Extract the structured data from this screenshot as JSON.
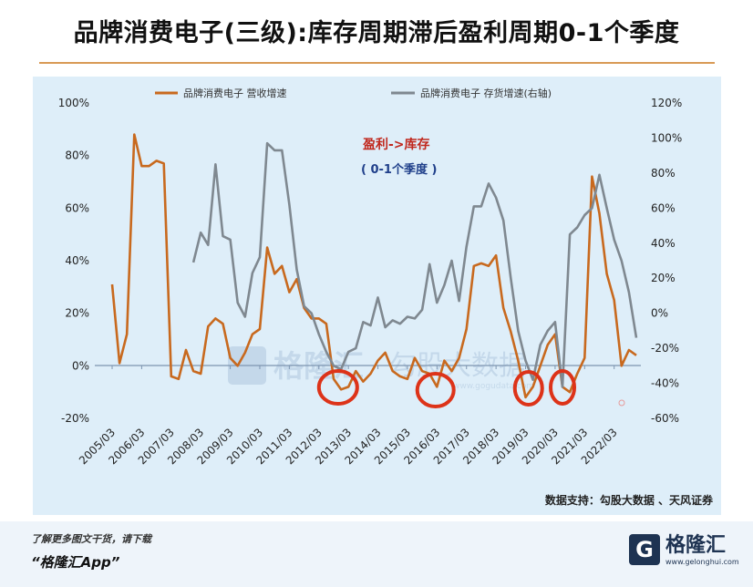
{
  "title": "品牌消费电子(三级):库存周期滞后盈利周期0-1个季度",
  "source_note": "数据支持：勾股大数据 、天风证券",
  "download_note": "了解更多图文干货，请下载",
  "app_name": "“格隆汇App”",
  "logo": {
    "mark": "G",
    "text": "格隆汇",
    "url": "www.gelonghui.com"
  },
  "watermark": {
    "left_text": "格隆汇",
    "right_text": "勾股大数据",
    "url": "www.gogudata.com"
  },
  "annotation": {
    "line1": "盈利->库存",
    "line2": "( 0-1个季度 )"
  },
  "colors": {
    "revenue": "#c8691e",
    "inventory": "#7f8890",
    "annotation_red": "#c0281e",
    "annotation_blue": "#1f3f8a",
    "circle": "#dd3319"
  },
  "chart_data": {
    "type": "line",
    "title": "品牌消费电子(三级):库存周期滞后盈利周期0-1个季度",
    "x_tick_labels": [
      "2005/03",
      "2006/03",
      "2007/03",
      "2008/03",
      "2009/03",
      "2010/03",
      "2011/03",
      "2012/03",
      "2013/03",
      "2014/03",
      "2015/03",
      "2016/03",
      "2017/03",
      "2018/03",
      "2019/03",
      "2020/03",
      "2021/03",
      "2022/03"
    ],
    "left_axis": {
      "ticks": [
        "100%",
        "80%",
        "60%",
        "40%",
        "20%",
        "0%",
        "-20%"
      ],
      "ylim": [
        -20,
        100
      ]
    },
    "right_axis": {
      "ticks": [
        "120%",
        "100%",
        "80%",
        "60%",
        "40%",
        "20%",
        "0%",
        "-20%",
        "-40%",
        "-60%"
      ],
      "ylim": [
        -60,
        120
      ]
    },
    "legend_position": "top",
    "grid": false,
    "series": [
      {
        "name": "品牌消费电子 营收增速",
        "axis": "left",
        "points": [
          [
            2005.25,
            31
          ],
          [
            2005.5,
            1
          ],
          [
            2005.75,
            12
          ],
          [
            2006.0,
            88
          ],
          [
            2006.25,
            76
          ],
          [
            2006.5,
            76
          ],
          [
            2006.75,
            78
          ],
          [
            2007.0,
            77
          ],
          [
            2007.25,
            -4
          ],
          [
            2007.5,
            -5
          ],
          [
            2007.75,
            6
          ],
          [
            2008.0,
            -2
          ],
          [
            2008.25,
            -3
          ],
          [
            2008.5,
            15
          ],
          [
            2008.75,
            18
          ],
          [
            2009.0,
            16
          ],
          [
            2009.25,
            3
          ],
          [
            2009.5,
            0
          ],
          [
            2009.75,
            5
          ],
          [
            2010.0,
            12
          ],
          [
            2010.25,
            14
          ],
          [
            2010.5,
            45
          ],
          [
            2010.75,
            35
          ],
          [
            2011.0,
            38
          ],
          [
            2011.25,
            28
          ],
          [
            2011.5,
            33
          ],
          [
            2011.75,
            22
          ],
          [
            2012.0,
            18
          ],
          [
            2012.25,
            18
          ],
          [
            2012.5,
            16
          ],
          [
            2012.75,
            -5
          ],
          [
            2013.0,
            -9
          ],
          [
            2013.25,
            -8
          ],
          [
            2013.5,
            -2
          ],
          [
            2013.75,
            -6
          ],
          [
            2014.0,
            -3
          ],
          [
            2014.25,
            2
          ],
          [
            2014.5,
            5
          ],
          [
            2014.75,
            -2
          ],
          [
            2015.0,
            -4
          ],
          [
            2015.25,
            -5
          ],
          [
            2015.5,
            3
          ],
          [
            2015.75,
            -2
          ],
          [
            2016.0,
            -3
          ],
          [
            2016.25,
            -8
          ],
          [
            2016.5,
            2
          ],
          [
            2016.75,
            -2
          ],
          [
            2017.0,
            3
          ],
          [
            2017.25,
            14
          ],
          [
            2017.5,
            38
          ],
          [
            2017.75,
            39
          ],
          [
            2018.0,
            38
          ],
          [
            2018.25,
            42
          ],
          [
            2018.5,
            22
          ],
          [
            2018.75,
            13
          ],
          [
            2019.0,
            2
          ],
          [
            2019.25,
            -12
          ],
          [
            2019.5,
            -8
          ],
          [
            2019.75,
            0
          ],
          [
            2020.0,
            8
          ],
          [
            2020.25,
            12
          ],
          [
            2020.5,
            -8
          ],
          [
            2020.75,
            -10
          ],
          [
            2021.0,
            -3
          ],
          [
            2021.25,
            3
          ],
          [
            2021.5,
            72
          ],
          [
            2021.75,
            58
          ],
          [
            2022.0,
            35
          ],
          [
            2022.25,
            25
          ],
          [
            2022.5,
            0
          ],
          [
            2022.75,
            6
          ],
          [
            2023.0,
            4
          ]
        ]
      },
      {
        "name": "品牌消费电子 存货增速(右轴)",
        "axis": "right",
        "points": [
          [
            2008.0,
            29
          ],
          [
            2008.25,
            46
          ],
          [
            2008.5,
            39
          ],
          [
            2008.75,
            85
          ],
          [
            2009.0,
            44
          ],
          [
            2009.25,
            42
          ],
          [
            2009.5,
            6
          ],
          [
            2009.75,
            -2
          ],
          [
            2010.0,
            23
          ],
          [
            2010.25,
            32
          ],
          [
            2010.5,
            97
          ],
          [
            2010.75,
            93
          ],
          [
            2011.0,
            93
          ],
          [
            2011.25,
            62
          ],
          [
            2011.5,
            25
          ],
          [
            2011.75,
            4
          ],
          [
            2012.0,
            0
          ],
          [
            2012.25,
            -12
          ],
          [
            2012.5,
            -22
          ],
          [
            2012.75,
            -30
          ],
          [
            2013.0,
            -32
          ],
          [
            2013.25,
            -22
          ],
          [
            2013.5,
            -20
          ],
          [
            2013.75,
            -5
          ],
          [
            2014.0,
            -7
          ],
          [
            2014.25,
            9
          ],
          [
            2014.5,
            -8
          ],
          [
            2014.75,
            -4
          ],
          [
            2015.0,
            -6
          ],
          [
            2015.25,
            -2
          ],
          [
            2015.5,
            -3
          ],
          [
            2015.75,
            2
          ],
          [
            2016.0,
            28
          ],
          [
            2016.25,
            6
          ],
          [
            2016.5,
            16
          ],
          [
            2016.75,
            30
          ],
          [
            2017.0,
            7
          ],
          [
            2017.25,
            38
          ],
          [
            2017.5,
            61
          ],
          [
            2017.75,
            61
          ],
          [
            2018.0,
            74
          ],
          [
            2018.25,
            66
          ],
          [
            2018.5,
            53
          ],
          [
            2018.75,
            20
          ],
          [
            2019.0,
            -10
          ],
          [
            2019.25,
            -27
          ],
          [
            2019.5,
            -38
          ],
          [
            2019.75,
            -18
          ],
          [
            2020.0,
            -10
          ],
          [
            2020.25,
            -5
          ],
          [
            2020.5,
            -42
          ],
          [
            2020.75,
            45
          ],
          [
            2021.0,
            49
          ],
          [
            2021.25,
            56
          ],
          [
            2021.5,
            60
          ],
          [
            2021.75,
            79
          ],
          [
            2022.0,
            60
          ],
          [
            2022.25,
            42
          ],
          [
            2022.5,
            30
          ],
          [
            2022.75,
            12
          ],
          [
            2023.0,
            -14
          ]
        ]
      }
    ],
    "highlight_circles_at": [
      2012.9,
      2016.2,
      2019.35,
      2020.5
    ]
  }
}
